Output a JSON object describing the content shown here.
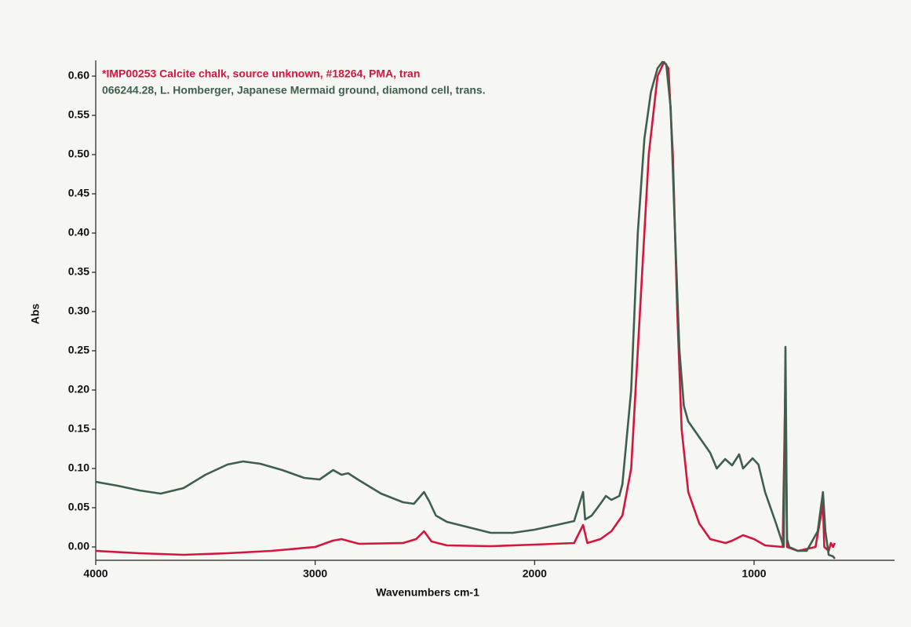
{
  "chart_data": {
    "type": "line",
    "xlabel": "Wavenumbers  cm-1",
    "ylabel": "Abs",
    "xlim": [
      4000,
      360
    ],
    "ylim": [
      -0.017,
      0.62
    ],
    "xticks": [
      4000,
      3000,
      2000,
      1000
    ],
    "yticks": [
      {
        "value": 0,
        "label": "0.00"
      },
      {
        "value": 0.05,
        "label": "0.05"
      },
      {
        "value": 0.1,
        "label": "0.10"
      },
      {
        "value": 0.15,
        "label": "0.15"
      },
      {
        "value": 0.2,
        "label": "0.20"
      },
      {
        "value": 0.25,
        "label": "0.25"
      },
      {
        "value": 0.3,
        "label": "0.30"
      },
      {
        "value": 0.35,
        "label": "0.35"
      },
      {
        "value": 0.4,
        "label": "0.40"
      },
      {
        "value": 0.45,
        "label": "0.45"
      },
      {
        "value": 0.5,
        "label": "0.50"
      },
      {
        "value": 0.55,
        "label": "0.55"
      },
      {
        "value": 0.6,
        "label": "0.60"
      }
    ],
    "series": [
      {
        "name": "*IMP00253 Calcite chalk, source unknown, #18264, PMA, tran",
        "color": "#d4163f",
        "x": [
          4000,
          3800,
          3600,
          3400,
          3200,
          3000,
          2920,
          2880,
          2800,
          2600,
          2540,
          2504,
          2470,
          2400,
          2200,
          2000,
          1820,
          1779,
          1760,
          1700,
          1650,
          1600,
          1560,
          1520,
          1480,
          1440,
          1410,
          1390,
          1370,
          1350,
          1330,
          1300,
          1250,
          1200,
          1130,
          1100,
          1050,
          1000,
          950,
          870,
          857,
          850,
          800,
          720,
          686,
          680,
          660,
          650,
          640,
          632
        ],
        "values": [
          -0.005,
          -0.008,
          -0.01,
          -0.008,
          -0.005,
          0.0,
          0.008,
          0.01,
          0.004,
          0.005,
          0.01,
          0.02,
          0.007,
          0.002,
          0.001,
          0.003,
          0.005,
          0.028,
          0.005,
          0.01,
          0.02,
          0.04,
          0.1,
          0.3,
          0.5,
          0.6,
          0.618,
          0.61,
          0.5,
          0.3,
          0.15,
          0.07,
          0.03,
          0.01,
          0.005,
          0.008,
          0.015,
          0.01,
          0.002,
          0.0,
          0.21,
          0.0,
          -0.005,
          0.0,
          0.055,
          0.0,
          -0.005,
          0.005,
          0.0,
          0.005
        ]
      },
      {
        "name": "066244.28, L. Homberger, Japanese Mermaid ground, diamond cell, trans.",
        "color": "#3e5f4c",
        "x": [
          4000,
          3900,
          3800,
          3704,
          3600,
          3500,
          3400,
          3329,
          3250,
          3150,
          3050,
          2980,
          2918,
          2880,
          2850,
          2800,
          2700,
          2600,
          2550,
          2504,
          2480,
          2450,
          2400,
          2300,
          2200,
          2100,
          2000,
          1900,
          1820,
          1779,
          1770,
          1740,
          1700,
          1675,
          1650,
          1614,
          1600,
          1560,
          1530,
          1500,
          1470,
          1440,
          1418,
          1400,
          1380,
          1360,
          1340,
          1320,
          1300,
          1250,
          1200,
          1170,
          1132,
          1100,
          1068,
          1050,
          1007,
          980,
          950,
          900,
          865,
          857,
          850,
          840,
          800,
          760,
          710,
          686,
          675,
          660,
          640,
          632
        ],
        "values": [
          0.083,
          0.078,
          0.072,
          0.068,
          0.075,
          0.092,
          0.105,
          0.109,
          0.106,
          0.098,
          0.088,
          0.086,
          0.098,
          0.092,
          0.094,
          0.085,
          0.068,
          0.057,
          0.055,
          0.07,
          0.058,
          0.04,
          0.032,
          0.025,
          0.018,
          0.018,
          0.022,
          0.028,
          0.033,
          0.07,
          0.035,
          0.04,
          0.055,
          0.065,
          0.06,
          0.065,
          0.08,
          0.2,
          0.4,
          0.52,
          0.58,
          0.61,
          0.618,
          0.615,
          0.56,
          0.4,
          0.25,
          0.18,
          0.16,
          0.14,
          0.12,
          0.1,
          0.112,
          0.104,
          0.118,
          0.1,
          0.113,
          0.105,
          0.07,
          0.03,
          0.0,
          0.255,
          0.01,
          0.0,
          -0.005,
          -0.005,
          0.02,
          0.07,
          0.02,
          -0.01,
          -0.012,
          -0.015
        ]
      }
    ]
  }
}
